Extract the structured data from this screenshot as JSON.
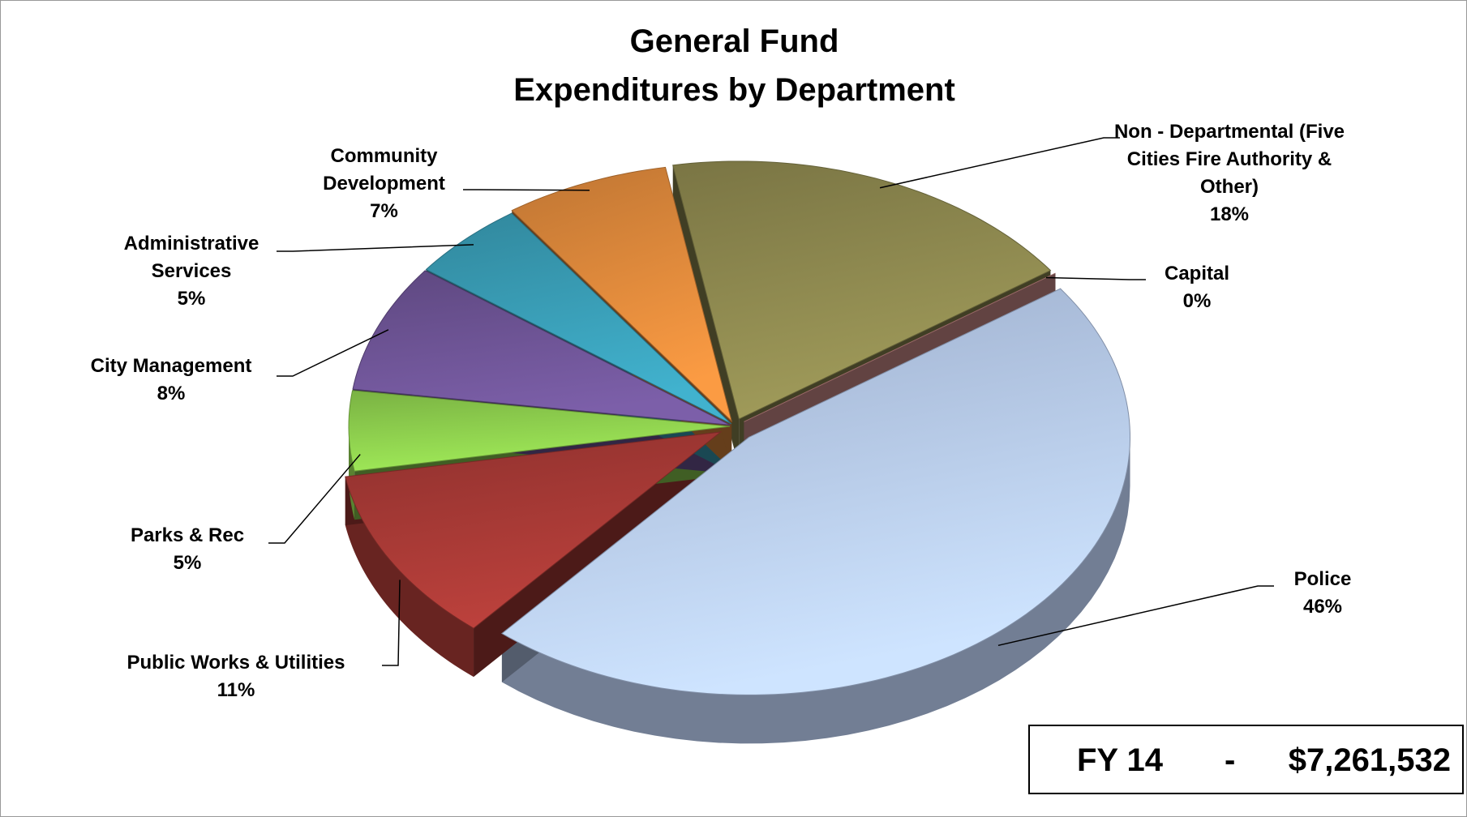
{
  "chart_data": {
    "type": "pie",
    "title": "General Fund",
    "subtitle": "Expenditures by Department",
    "categories": [
      "Non - Departmental (Five Cities Fire Authority & Other)",
      "Capital",
      "Police",
      "Public Works & Utilities",
      "Parks & Rec",
      "City Management",
      "Administrative Services",
      "Community Development"
    ],
    "values": [
      18,
      0,
      46,
      11,
      5,
      8,
      5,
      7
    ],
    "value_labels": [
      "18%",
      "0%",
      "46%",
      "11%",
      "5%",
      "8%",
      "5%",
      "7%"
    ],
    "colors": [
      "#8f8a50",
      "#d99592",
      "#b8ccef",
      "#a83a36",
      "#8fd14f",
      "#6f5597",
      "#3a9fb8",
      "#e08a3c"
    ],
    "annotations": [
      "FY 14",
      "-",
      "$7,261,532"
    ]
  }
}
